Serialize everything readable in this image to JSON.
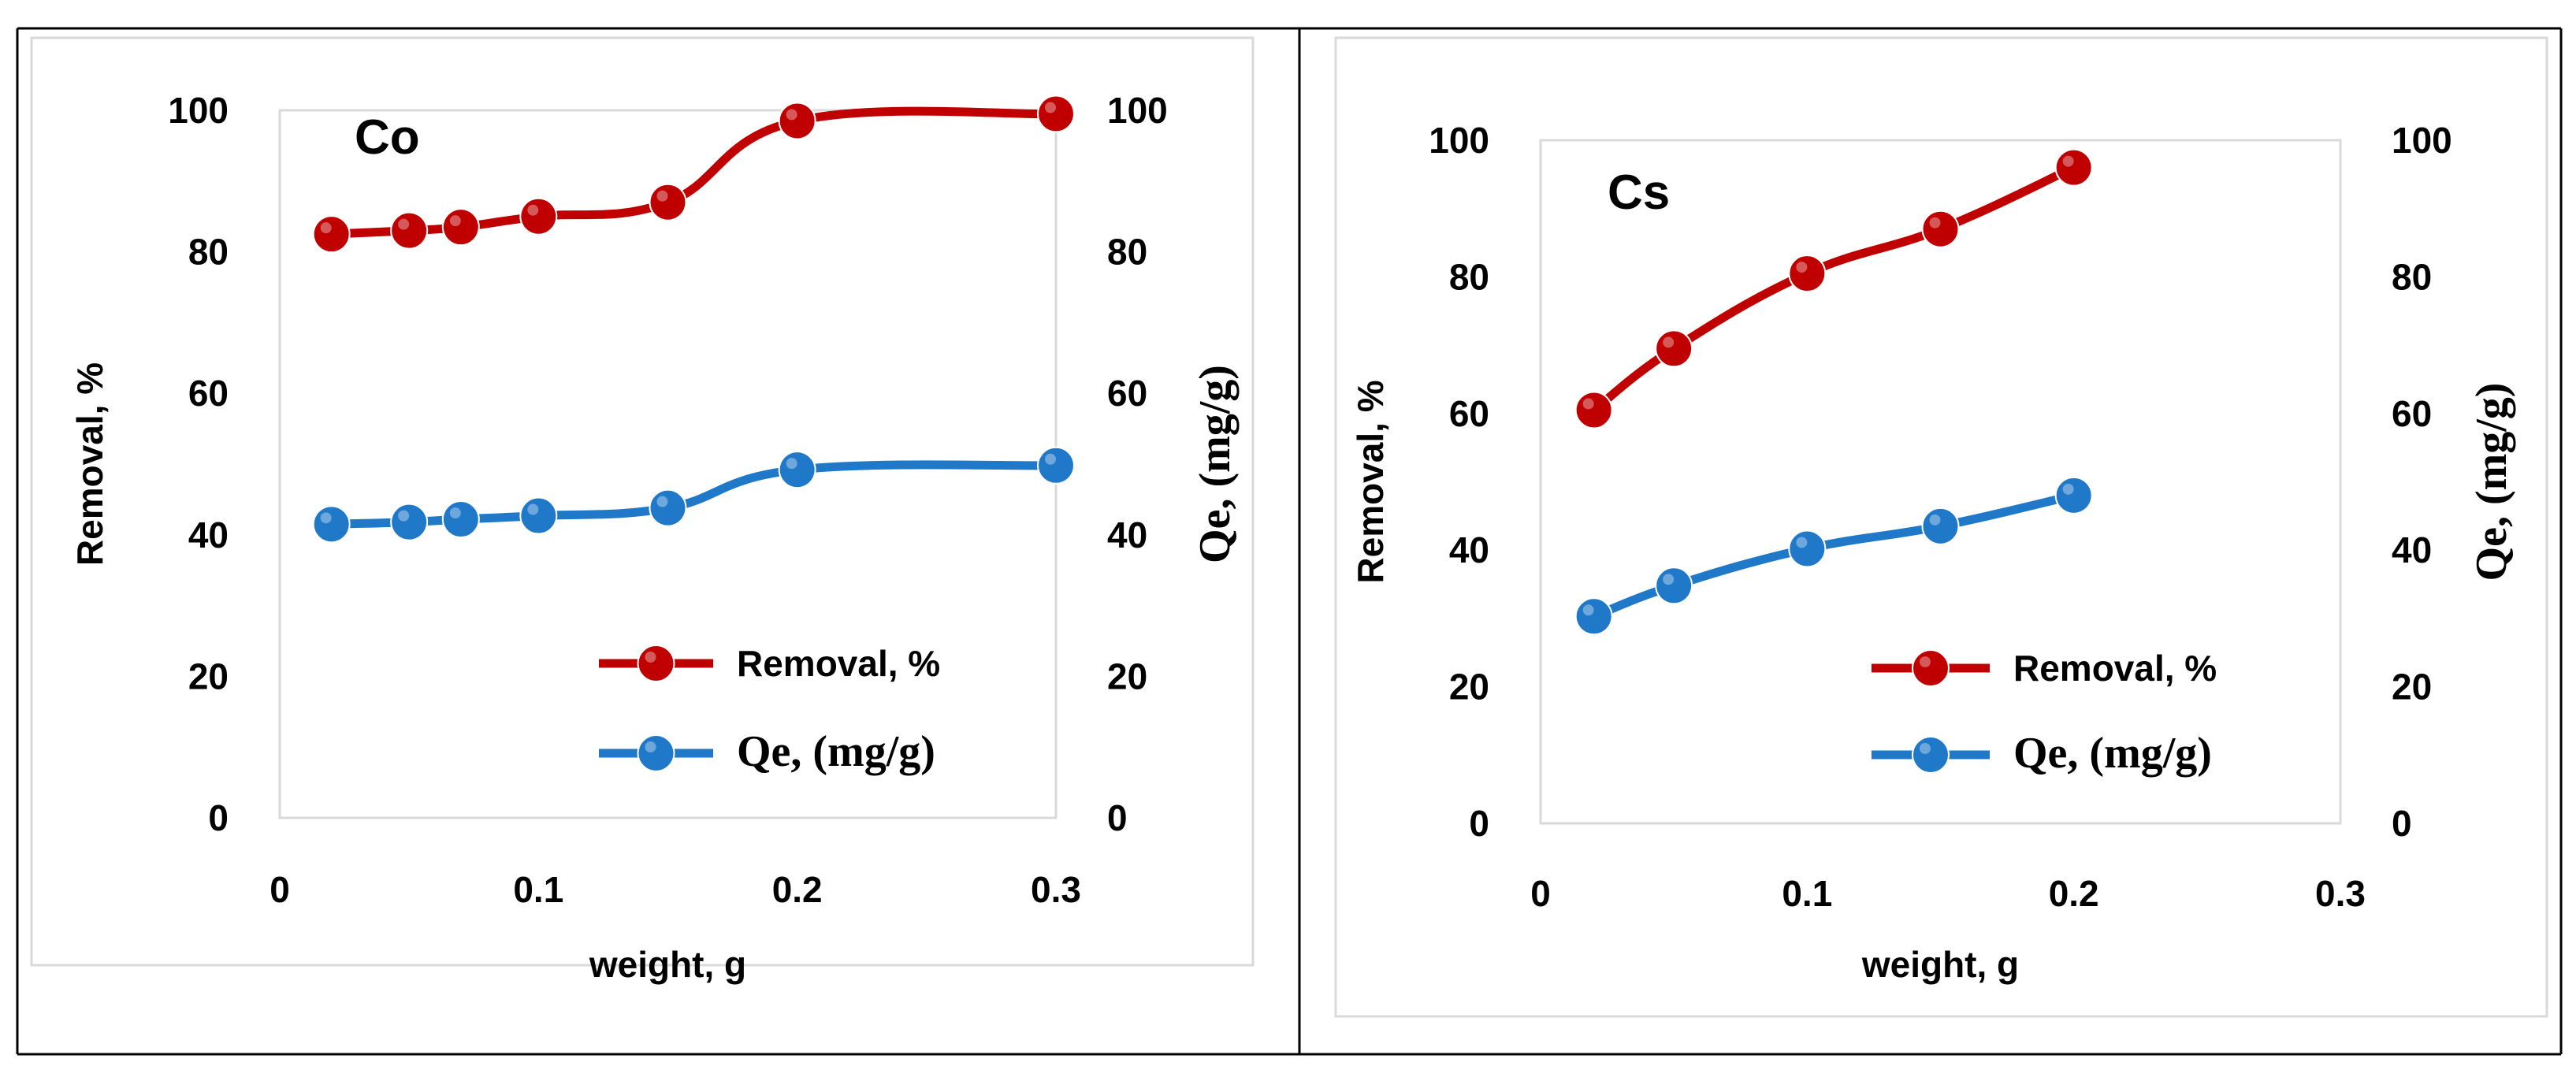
{
  "figure": {
    "series_colors": {
      "removal": "#C00000",
      "qe": "#1F78C8"
    }
  },
  "chart_data": [
    {
      "type": "line",
      "panel_label": "Co",
      "xlabel": "weight, g",
      "ylabel_left": "Removal, %",
      "ylabel_right": "Qe, (mg/g)",
      "xlim": [
        0,
        0.3
      ],
      "ylim_left": [
        0,
        100
      ],
      "ylim_right": [
        0,
        100
      ],
      "xticks": [
        0,
        0.1,
        0.2,
        0.3
      ],
      "xtick_labels": [
        "0",
        "0.1",
        "0.2",
        "0.3"
      ],
      "yticks": [
        0,
        20,
        40,
        60,
        80,
        100
      ],
      "ytick_labels": [
        "0",
        "20",
        "40",
        "60",
        "80",
        "100"
      ],
      "legend_position": "bottom-right",
      "series": [
        {
          "name": "Removal, %",
          "axis": "left",
          "color": "#C00000",
          "x": [
            0.02,
            0.05,
            0.07,
            0.1,
            0.15,
            0.2,
            0.3
          ],
          "y": [
            82.5,
            83,
            83.5,
            85,
            87,
            98.5,
            99.5
          ]
        },
        {
          "name": "Qe, (mg/g)",
          "axis": "right",
          "color": "#1F78C8",
          "x": [
            0.02,
            0.05,
            0.07,
            0.1,
            0.15,
            0.2,
            0.3
          ],
          "y": [
            41.5,
            41.8,
            42.2,
            42.7,
            43.8,
            49.2,
            49.8
          ]
        }
      ]
    },
    {
      "type": "line",
      "panel_label": "Cs",
      "xlabel": "weight, g",
      "ylabel_left": "Removal, %",
      "ylabel_right": "Qe, (mg/g)",
      "xlim": [
        0,
        0.3
      ],
      "ylim_left": [
        0,
        100
      ],
      "ylim_right": [
        0,
        100
      ],
      "xticks": [
        0,
        0.1,
        0.2,
        0.3
      ],
      "xtick_labels": [
        "0",
        "0.1",
        "0.2",
        "0.3"
      ],
      "yticks": [
        0,
        20,
        40,
        60,
        80,
        100
      ],
      "ytick_labels": [
        "0",
        "20",
        "40",
        "60",
        "80",
        "100"
      ],
      "legend_position": "bottom-right",
      "series": [
        {
          "name": "Removal, %",
          "axis": "left",
          "color": "#C00000",
          "x": [
            0.02,
            0.05,
            0.1,
            0.15,
            0.2
          ],
          "y": [
            60.5,
            69.5,
            80.5,
            87,
            96
          ]
        },
        {
          "name": "Qe, (mg/g)",
          "axis": "right",
          "color": "#1F78C8",
          "x": [
            0.02,
            0.05,
            0.1,
            0.15,
            0.2
          ],
          "y": [
            30.3,
            34.8,
            40.2,
            43.5,
            48
          ]
        }
      ]
    }
  ]
}
